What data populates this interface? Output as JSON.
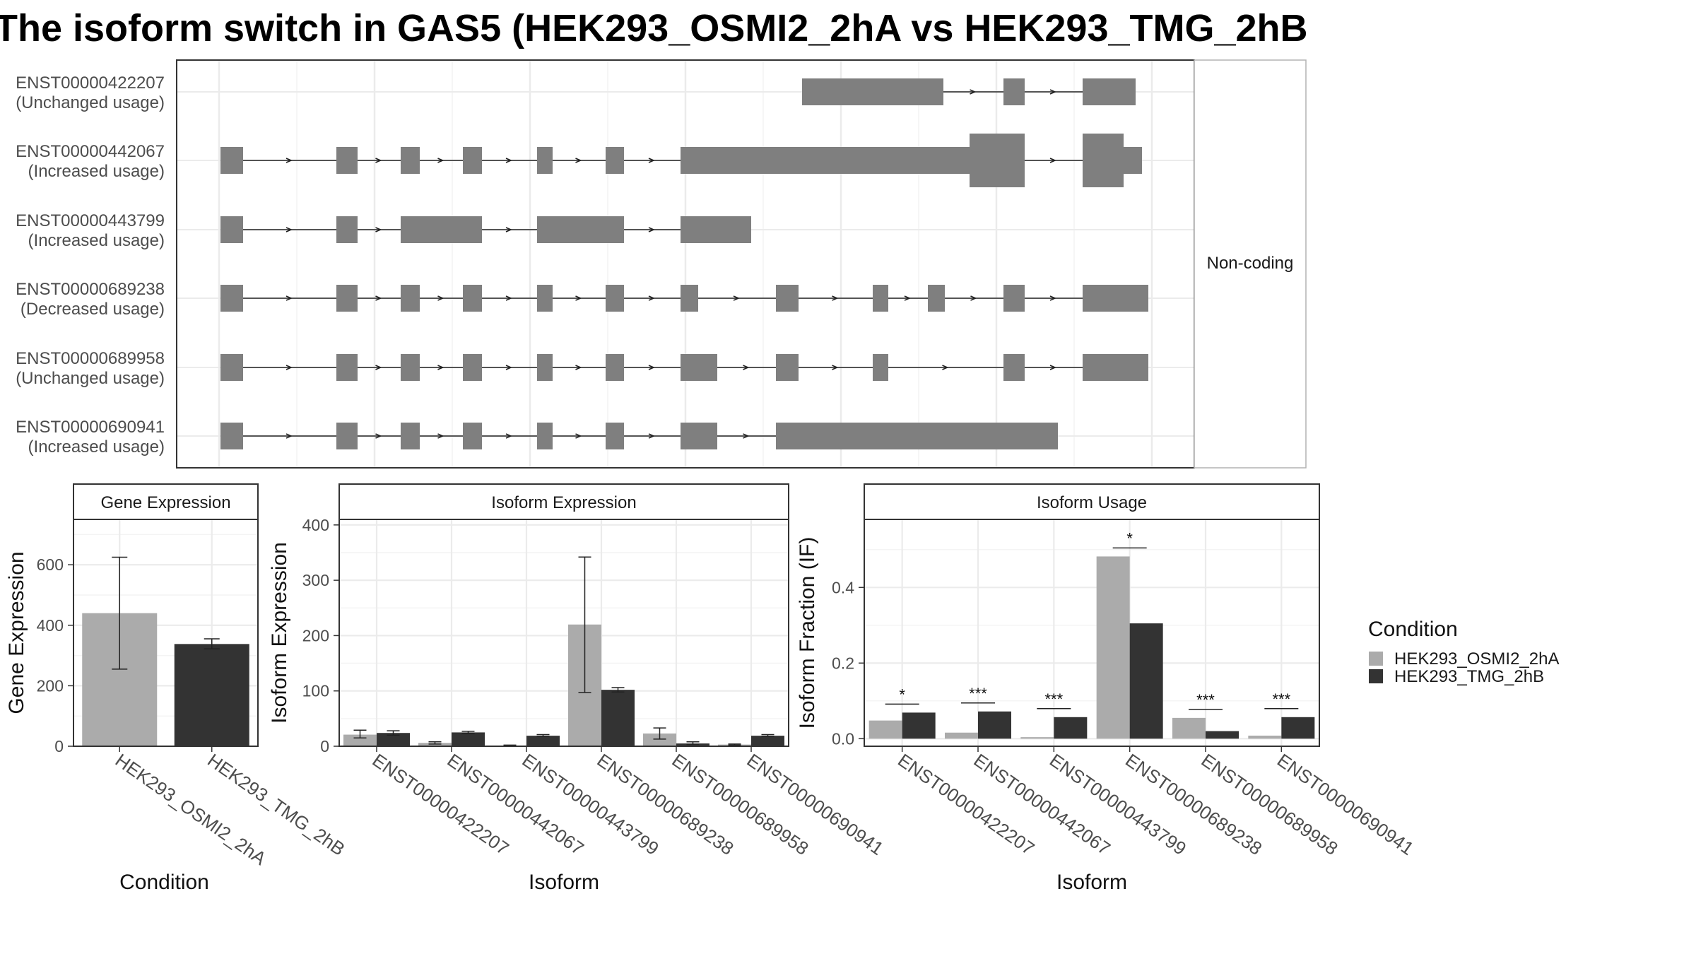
{
  "title": "The isoform switch in GAS5 (HEK293_OSMI2_2hA vs HEK293_TMG_2hB",
  "colors": {
    "condition_a": "#ababab",
    "condition_b": "#333333",
    "exon": "#7f7f7f",
    "grid": "#ebebeb",
    "strip_bg": "#ffffff",
    "frame": "#333333"
  },
  "chart_data": [
    {
      "type": "gene-structure",
      "facet_label": "Non-coding",
      "transcripts": [
        {
          "id": "ENST00000422207",
          "usage": "(Unchanged usage)"
        },
        {
          "id": "ENST00000442067",
          "usage": "(Increased usage)"
        },
        {
          "id": "ENST00000443799",
          "usage": "(Increased usage)"
        },
        {
          "id": "ENST00000689238",
          "usage": "(Decreased usage)"
        },
        {
          "id": "ENST00000689958",
          "usage": "(Unchanged usage)"
        },
        {
          "id": "ENST00000690941",
          "usage": "(Increased usage)"
        }
      ]
    },
    {
      "type": "bar",
      "strip": "Gene Expression",
      "xlabel": "Condition",
      "ylabel": "Gene Expression",
      "ylim": [
        0,
        750
      ],
      "yticks": [
        0,
        200,
        400,
        600
      ],
      "categories": [
        "HEK293_OSMI2_2hA",
        "HEK293_TMG_2hB"
      ],
      "values": [
        440,
        338
      ],
      "error_low": [
        255,
        322
      ],
      "error_high": [
        625,
        355
      ]
    },
    {
      "type": "bar",
      "strip": "Isoform Expression",
      "xlabel": "Isoform",
      "ylabel": "Isoform Expression",
      "ylim": [
        0,
        410
      ],
      "yticks": [
        0,
        100,
        200,
        300,
        400
      ],
      "categories": [
        "ENST00000422207",
        "ENST00000442067",
        "ENST00000443799",
        "ENST00000689238",
        "ENST00000689958",
        "ENST00000690941"
      ],
      "series": [
        {
          "name": "HEK293_OSMI2_2hA",
          "values": [
            21,
            6,
            1,
            220,
            23,
            3
          ],
          "error_low": [
            15,
            4,
            0,
            97,
            13,
            2
          ],
          "error_high": [
            29,
            8,
            2,
            342,
            33,
            4
          ]
        },
        {
          "name": "HEK293_TMG_2hB",
          "values": [
            24,
            25,
            19,
            102,
            5,
            19
          ],
          "error_low": [
            20,
            23,
            18,
            98,
            3,
            18
          ],
          "error_high": [
            28,
            27,
            21,
            106,
            8,
            21
          ]
        }
      ]
    },
    {
      "type": "bar",
      "strip": "Isoform Usage",
      "xlabel": "Isoform",
      "ylabel": "Isoform Fraction (IF)",
      "ylim": [
        -0.02,
        0.58
      ],
      "yticks": [
        0.0,
        0.2,
        0.4
      ],
      "ytick_labels": [
        "0.0",
        "0.2",
        "0.4"
      ],
      "categories": [
        "ENST00000422207",
        "ENST00000442067",
        "ENST00000443799",
        "ENST00000689238",
        "ENST00000689958",
        "ENST00000690941"
      ],
      "series": [
        {
          "name": "HEK293_OSMI2_2hA",
          "values": [
            0.048,
            0.016,
            0.004,
            0.482,
            0.055,
            0.008
          ]
        },
        {
          "name": "HEK293_TMG_2hB",
          "values": [
            0.069,
            0.072,
            0.057,
            0.305,
            0.02,
            0.057
          ]
        }
      ],
      "significance": [
        "*",
        "***",
        "***",
        "*",
        "***",
        "***"
      ]
    }
  ],
  "legend": {
    "title": "Condition",
    "items": [
      {
        "label": "HEK293_OSMI2_2hA",
        "color": "#ababab"
      },
      {
        "label": "HEK293_TMG_2hB",
        "color": "#333333"
      }
    ]
  }
}
